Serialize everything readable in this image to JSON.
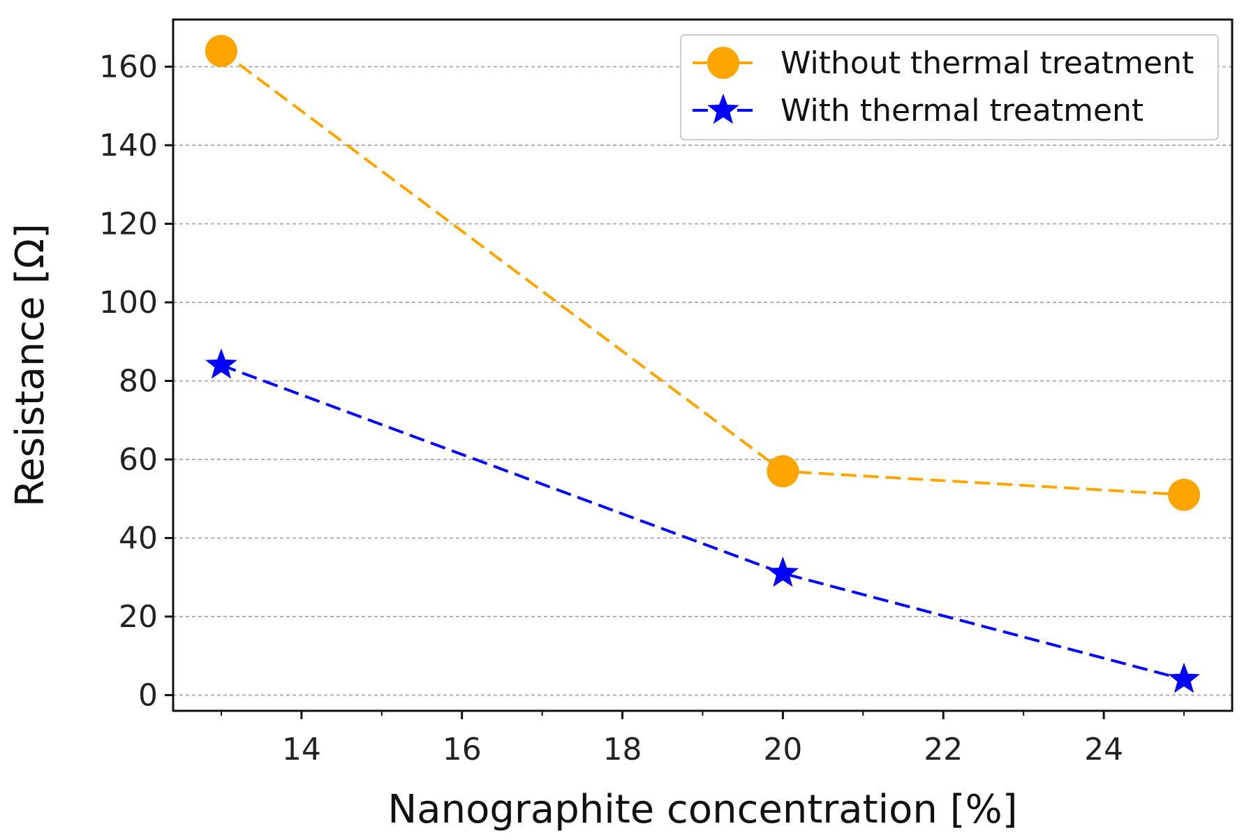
{
  "chart_data": {
    "type": "line",
    "title": "",
    "xlabel": "Nanographite concentration [%]",
    "ylabel": "Resistance [Ω]",
    "xlim": [
      12.4,
      25.6
    ],
    "ylim": [
      -4,
      172
    ],
    "x_ticks": [
      14,
      16,
      18,
      20,
      22,
      24
    ],
    "x_tick_labels": [
      "14",
      "16",
      "18",
      "20",
      "22",
      "24"
    ],
    "x_minor_ticks": [
      13,
      15,
      17,
      19,
      21,
      23,
      25
    ],
    "y_ticks": [
      0,
      20,
      40,
      60,
      80,
      100,
      120,
      140,
      160
    ],
    "y_tick_labels": [
      "0",
      "20",
      "40",
      "60",
      "80",
      "100",
      "120",
      "140",
      "160"
    ],
    "grid": "horizontal dashed",
    "legend_position": "top-right",
    "series": [
      {
        "name": "Without thermal treatment",
        "marker": "circle",
        "line_style": "dashed",
        "color": "#FFA500",
        "x": [
          13,
          20,
          25
        ],
        "values": [
          164,
          57,
          51
        ]
      },
      {
        "name": "With thermal treatment",
        "marker": "star",
        "line_style": "dashed",
        "color": "#0000FF",
        "x": [
          13,
          20,
          25
        ],
        "values": [
          84,
          31,
          4
        ]
      }
    ]
  }
}
